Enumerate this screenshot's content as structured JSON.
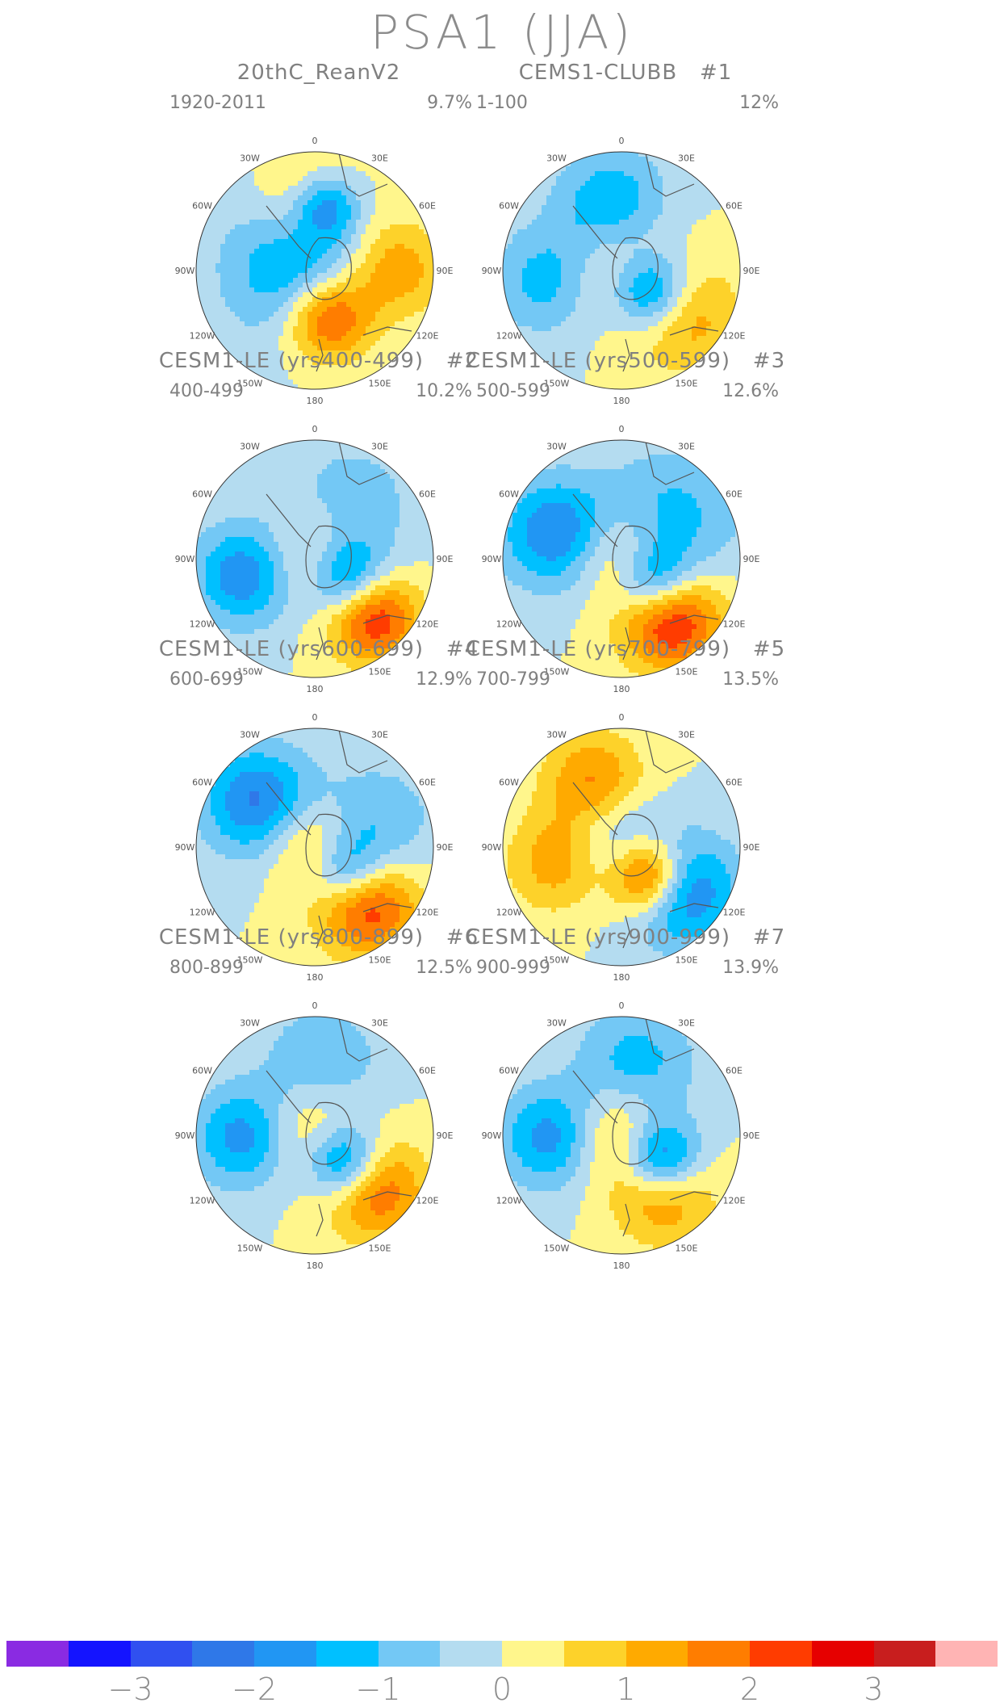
{
  "title": "PSA1 (JJA)",
  "panels": [
    {
      "title": "20thC_ReanV2",
      "tag": "",
      "years": "1920-2011",
      "pct": "9.7%",
      "field": [
        [
          0.0,
          -0.3,
          -1.6,
          0.7
        ],
        [
          0.55,
          0.0,
          1.9,
          0.5
        ],
        [
          0.55,
          0.16,
          -2.6,
          0.35
        ],
        [
          0.65,
          1.55,
          1.7,
          0.5
        ],
        [
          0.4,
          2.85,
          2.9,
          0.45
        ],
        [
          0.25,
          -1.3,
          -0.6,
          0.8
        ]
      ]
    },
    {
      "title": "CEMS1-CLUBB",
      "tag": "#1",
      "years": "1-100",
      "pct": "12%",
      "field": [
        [
          0.0,
          0.0,
          1.3,
          0.55
        ],
        [
          0.3,
          2.2,
          -3.0,
          0.42
        ],
        [
          0.62,
          2.2,
          1.6,
          0.55
        ],
        [
          0.55,
          -0.15,
          -1.6,
          0.55
        ],
        [
          0.62,
          -1.7,
          -1.3,
          0.55
        ]
      ]
    },
    {
      "title": "CESM1-LE (yrs400-499)",
      "tag": "#2",
      "years": "400-499",
      "pct": "10.2%",
      "field": [
        [
          0.0,
          0.0,
          1.2,
          0.45
        ],
        [
          0.3,
          2.1,
          -2.3,
          0.4
        ],
        [
          0.7,
          2.35,
          2.6,
          0.45
        ],
        [
          0.62,
          -1.8,
          -1.9,
          0.5
        ],
        [
          0.55,
          0.6,
          -0.8,
          0.7
        ]
      ]
    },
    {
      "title": "CESM1-LE (yrs500-599)",
      "tag": "#3",
      "years": "500-599",
      "pct": "12.6%",
      "field": [
        [
          0.0,
          0.0,
          1.4,
          0.45
        ],
        [
          0.33,
          2.2,
          -2.4,
          0.4
        ],
        [
          0.65,
          2.45,
          3.0,
          0.5
        ],
        [
          0.6,
          -1.2,
          -2.0,
          0.55
        ],
        [
          0.55,
          0.9,
          -1.2,
          0.7
        ]
      ]
    },
    {
      "title": "CESM1-LE (yrs600-699)",
      "tag": "#4",
      "years": "600-699",
      "pct": "12.9%",
      "field": [
        [
          0.0,
          0.0,
          1.5,
          0.45
        ],
        [
          0.33,
          2.2,
          -2.3,
          0.4
        ],
        [
          0.65,
          2.4,
          2.7,
          0.5
        ],
        [
          0.62,
          -0.9,
          -2.1,
          0.55
        ],
        [
          0.55,
          1.2,
          -1.0,
          0.6
        ]
      ]
    },
    {
      "title": "CESM1-LE (yrs700-799)",
      "tag": "#5",
      "years": "700-799",
      "pct": "13.5%",
      "field": [
        [
          0.0,
          0.0,
          -1.3,
          0.5
        ],
        [
          0.32,
          2.4,
          3.5,
          0.4
        ],
        [
          0.62,
          2.2,
          -2.4,
          0.55
        ],
        [
          0.6,
          -0.4,
          1.6,
          0.5
        ],
        [
          0.55,
          -1.8,
          1.4,
          0.5
        ]
      ]
    },
    {
      "title": "CESM1-LE (yrs800-899)",
      "tag": "#6",
      "years": "800-899",
      "pct": "12.5%",
      "field": [
        [
          0.0,
          0.0,
          1.3,
          0.5
        ],
        [
          0.33,
          2.3,
          -3.0,
          0.4
        ],
        [
          0.66,
          2.3,
          2.3,
          0.5
        ],
        [
          0.6,
          -1.6,
          -1.8,
          0.5
        ],
        [
          0.62,
          0.1,
          -1.0,
          0.6
        ]
      ]
    },
    {
      "title": "CESM1-LE (yrs900-999)",
      "tag": "#7",
      "years": "900-999",
      "pct": "13.9%",
      "field": [
        [
          0.0,
          0.0,
          1.4,
          0.5
        ],
        [
          0.38,
          2.1,
          -3.0,
          0.4
        ],
        [
          0.6,
          2.5,
          1.8,
          0.5
        ],
        [
          0.6,
          -1.6,
          -1.8,
          0.5
        ],
        [
          0.6,
          0.2,
          -1.3,
          0.6
        ]
      ]
    }
  ],
  "longitude_labels": [
    "0",
    "30E",
    "60E",
    "90E",
    "120E",
    "150E",
    "180",
    "150W",
    "120W",
    "90W",
    "60W",
    "30W"
  ],
  "colorbar": {
    "colors": [
      "#8a2be2",
      "#1414ff",
      "#3050f0",
      "#2f78e8",
      "#2196f3",
      "#00c0ff",
      "#73c8f5",
      "#b4dcf0",
      "#fff68c",
      "#fdd22a",
      "#ffaa00",
      "#ff7d00",
      "#ff3c00",
      "#e60000",
      "#c81e1e",
      "#ffb4b4"
    ],
    "levels": [
      -3.5,
      -3,
      -2.5,
      -2,
      -1.5,
      -1,
      -0.5,
      0,
      0.5,
      1,
      1.5,
      2,
      2.5,
      3,
      3.5
    ],
    "labels": [
      {
        "text": "−3",
        "pos": 1
      },
      {
        "text": "−2",
        "pos": 3
      },
      {
        "text": "−1",
        "pos": 5
      },
      {
        "text": "0",
        "pos": 7
      },
      {
        "text": "1",
        "pos": 9
      },
      {
        "text": "2",
        "pos": 11
      },
      {
        "text": "3",
        "pos": 13
      }
    ]
  },
  "map_style": {
    "coast_color": "#555555"
  }
}
